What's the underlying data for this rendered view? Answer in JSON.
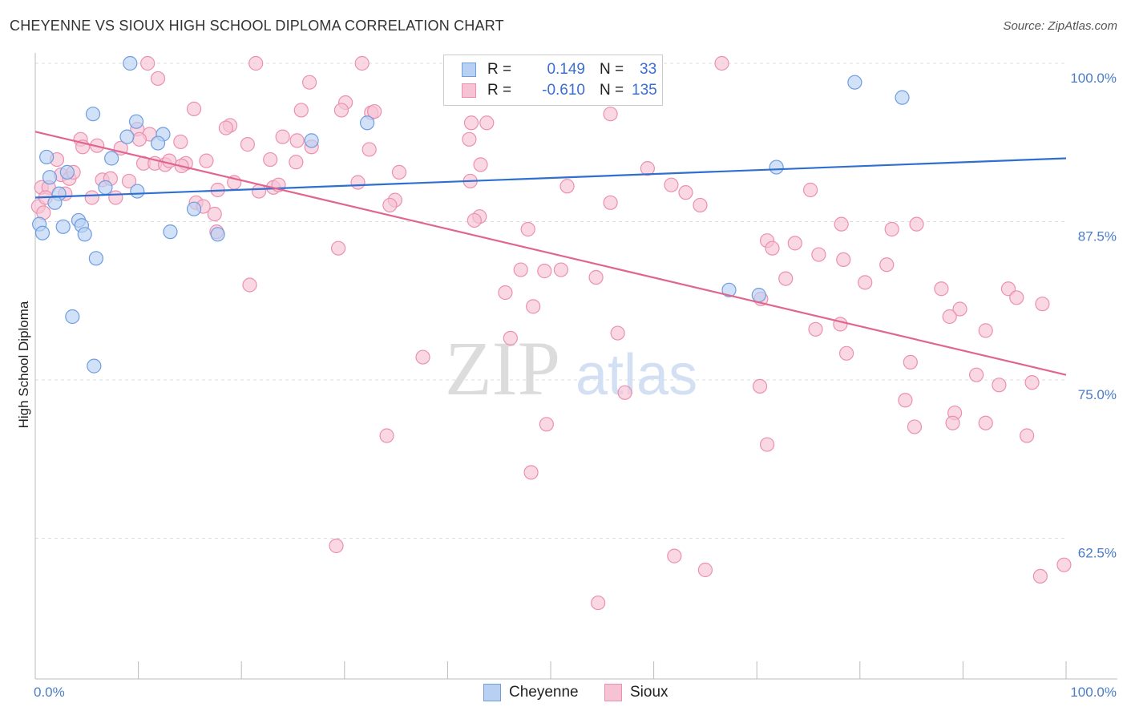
{
  "title": "CHEYENNE VS SIOUX HIGH SCHOOL DIPLOMA CORRELATION CHART",
  "source": "Source: ZipAtlas.com",
  "watermark": {
    "zip": "ZIP",
    "atlas": "atlas"
  },
  "legend": {
    "cheyenne": {
      "r_label": "R =",
      "r": "0.149",
      "n_label": "N =",
      "n": "33"
    },
    "sioux": {
      "r_label": "R =",
      "r": "-0.610",
      "n_label": "N =",
      "n": "135"
    }
  },
  "bottom_legend": {
    "cheyenne": "Cheyenne",
    "sioux": "Sioux"
  },
  "colors": {
    "cheyenne_fill": "#b8d1f3",
    "cheyenne_stroke": "#6e9de0",
    "cheyenne_line": "#2e6fd0",
    "sioux_fill": "#f7c3d4",
    "sioux_stroke": "#eb90b0",
    "sioux_line": "#e0668f",
    "tick_text": "#4a7cc9",
    "grid": "#dddddd"
  },
  "chart_data": {
    "type": "scatter",
    "title": "CHEYENNE VS SIOUX HIGH SCHOOL DIPLOMA CORRELATION CHART",
    "xlabel": "",
    "ylabel": "High School Diploma",
    "xlim": [
      0,
      100
    ],
    "ylim": [
      52,
      100
    ],
    "x_tick_labels": [
      "0.0%",
      "100.0%"
    ],
    "y_ticks": [
      {
        "value": 62.5,
        "label": "62.5%"
      },
      {
        "value": 75.0,
        "label": "75.0%"
      },
      {
        "value": 87.5,
        "label": "87.5%"
      },
      {
        "value": 100.0,
        "label": "100.0%"
      }
    ],
    "series": [
      {
        "name": "Cheyenne",
        "trend": {
          "x": [
            0,
            100
          ],
          "y": [
            89.4,
            92.5
          ]
        },
        "points": [
          [
            9.2,
            100.0
          ],
          [
            5.6,
            96.0
          ],
          [
            9.8,
            95.4
          ],
          [
            12.4,
            94.4
          ],
          [
            8.9,
            94.2
          ],
          [
            11.9,
            93.7
          ],
          [
            26.8,
            93.9
          ],
          [
            32.2,
            95.3
          ],
          [
            79.5,
            98.5
          ],
          [
            84.1,
            97.3
          ],
          [
            1.1,
            92.6
          ],
          [
            7.4,
            92.5
          ],
          [
            1.4,
            91.0
          ],
          [
            3.1,
            91.4
          ],
          [
            6.8,
            90.2
          ],
          [
            9.9,
            89.9
          ],
          [
            2.3,
            89.7
          ],
          [
            1.9,
            89.0
          ],
          [
            15.4,
            88.5
          ],
          [
            0.4,
            87.3
          ],
          [
            2.7,
            87.1
          ],
          [
            4.2,
            87.6
          ],
          [
            4.5,
            87.2
          ],
          [
            0.7,
            86.6
          ],
          [
            4.8,
            86.5
          ],
          [
            13.1,
            86.7
          ],
          [
            17.7,
            86.5
          ],
          [
            5.9,
            84.6
          ],
          [
            71.9,
            91.8
          ],
          [
            3.6,
            80.0
          ],
          [
            5.7,
            76.1
          ],
          [
            67.3,
            82.1
          ],
          [
            70.2,
            81.7
          ]
        ]
      },
      {
        "name": "Sioux",
        "trend": {
          "x": [
            0,
            100
          ],
          "y": [
            94.6,
            75.4
          ]
        },
        "points": [
          [
            10.9,
            100.0
          ],
          [
            21.4,
            100.0
          ],
          [
            31.7,
            100.0
          ],
          [
            66.6,
            100.0
          ],
          [
            11.9,
            98.8
          ],
          [
            26.6,
            98.5
          ],
          [
            30.1,
            96.9
          ],
          [
            15.4,
            96.4
          ],
          [
            25.8,
            96.3
          ],
          [
            29.7,
            96.3
          ],
          [
            32.6,
            96.1
          ],
          [
            32.9,
            96.2
          ],
          [
            55.8,
            96.0
          ],
          [
            18.9,
            95.1
          ],
          [
            18.5,
            94.9
          ],
          [
            42.3,
            95.3
          ],
          [
            43.8,
            95.3
          ],
          [
            9.9,
            94.8
          ],
          [
            11.1,
            94.4
          ],
          [
            24.0,
            94.2
          ],
          [
            4.4,
            94.0
          ],
          [
            10.1,
            94.0
          ],
          [
            14.1,
            93.8
          ],
          [
            25.4,
            93.9
          ],
          [
            42.1,
            94.0
          ],
          [
            20.6,
            93.6
          ],
          [
            4.6,
            93.4
          ],
          [
            6.0,
            93.5
          ],
          [
            8.3,
            93.3
          ],
          [
            26.8,
            93.4
          ],
          [
            32.4,
            93.2
          ],
          [
            2.1,
            92.4
          ],
          [
            10.5,
            92.1
          ],
          [
            11.6,
            92.1
          ],
          [
            12.6,
            92.0
          ],
          [
            13.0,
            92.3
          ],
          [
            14.6,
            92.1
          ],
          [
            14.2,
            91.9
          ],
          [
            16.6,
            92.3
          ],
          [
            22.8,
            92.4
          ],
          [
            25.3,
            92.2
          ],
          [
            43.2,
            92.0
          ],
          [
            59.4,
            91.7
          ],
          [
            2.5,
            91.2
          ],
          [
            3.3,
            90.9
          ],
          [
            3.7,
            91.4
          ],
          [
            6.5,
            90.8
          ],
          [
            7.3,
            90.9
          ],
          [
            9.1,
            90.7
          ],
          [
            17.7,
            90.0
          ],
          [
            19.3,
            90.6
          ],
          [
            21.7,
            89.9
          ],
          [
            23.1,
            90.2
          ],
          [
            23.6,
            90.4
          ],
          [
            31.3,
            90.6
          ],
          [
            35.3,
            91.4
          ],
          [
            42.2,
            90.7
          ],
          [
            51.6,
            90.3
          ],
          [
            0.6,
            90.2
          ],
          [
            1.3,
            90.2
          ],
          [
            2.9,
            89.7
          ],
          [
            5.5,
            89.4
          ],
          [
            7.8,
            89.4
          ],
          [
            15.6,
            89.0
          ],
          [
            16.3,
            88.7
          ],
          [
            34.9,
            89.2
          ],
          [
            34.4,
            88.8
          ],
          [
            55.8,
            89.0
          ],
          [
            61.7,
            90.4
          ],
          [
            63.1,
            89.8
          ],
          [
            64.5,
            88.8
          ],
          [
            75.2,
            90.0
          ],
          [
            17.4,
            88.1
          ],
          [
            43.1,
            87.9
          ],
          [
            42.6,
            87.6
          ],
          [
            47.8,
            86.9
          ],
          [
            78.2,
            87.3
          ],
          [
            83.1,
            86.9
          ],
          [
            85.5,
            87.3
          ],
          [
            17.6,
            86.7
          ],
          [
            29.4,
            85.4
          ],
          [
            71.0,
            86.0
          ],
          [
            71.5,
            85.4
          ],
          [
            73.7,
            85.8
          ],
          [
            76.0,
            84.9
          ],
          [
            78.4,
            84.5
          ],
          [
            47.1,
            83.7
          ],
          [
            49.4,
            83.6
          ],
          [
            51.0,
            83.7
          ],
          [
            54.4,
            83.1
          ],
          [
            72.8,
            83.0
          ],
          [
            82.6,
            84.1
          ],
          [
            20.8,
            82.5
          ],
          [
            80.5,
            82.7
          ],
          [
            87.9,
            82.2
          ],
          [
            94.4,
            82.2
          ],
          [
            45.6,
            81.9
          ],
          [
            70.4,
            81.4
          ],
          [
            95.2,
            81.5
          ],
          [
            97.7,
            81.0
          ],
          [
            48.3,
            80.8
          ],
          [
            89.7,
            80.6
          ],
          [
            88.7,
            80.0
          ],
          [
            75.7,
            79.0
          ],
          [
            78.1,
            79.4
          ],
          [
            56.5,
            78.7
          ],
          [
            92.2,
            78.9
          ],
          [
            46.1,
            78.3
          ],
          [
            78.7,
            77.1
          ],
          [
            37.6,
            76.8
          ],
          [
            84.9,
            76.4
          ],
          [
            91.3,
            75.4
          ],
          [
            57.2,
            74.0
          ],
          [
            70.3,
            74.5
          ],
          [
            93.5,
            74.6
          ],
          [
            96.7,
            74.8
          ],
          [
            84.4,
            73.4
          ],
          [
            89.2,
            72.4
          ],
          [
            49.6,
            71.5
          ],
          [
            85.3,
            71.3
          ],
          [
            89.0,
            71.6
          ],
          [
            92.2,
            71.6
          ],
          [
            34.1,
            70.6
          ],
          [
            71.0,
            69.9
          ],
          [
            96.2,
            70.6
          ],
          [
            48.1,
            67.7
          ],
          [
            29.2,
            61.9
          ],
          [
            62.0,
            61.1
          ],
          [
            65.0,
            60.0
          ],
          [
            97.5,
            59.5
          ],
          [
            99.8,
            60.4
          ],
          [
            54.6,
            57.4
          ],
          [
            0.3,
            88.7
          ],
          [
            0.8,
            88.2
          ],
          [
            1.0,
            89.4
          ]
        ]
      }
    ]
  }
}
